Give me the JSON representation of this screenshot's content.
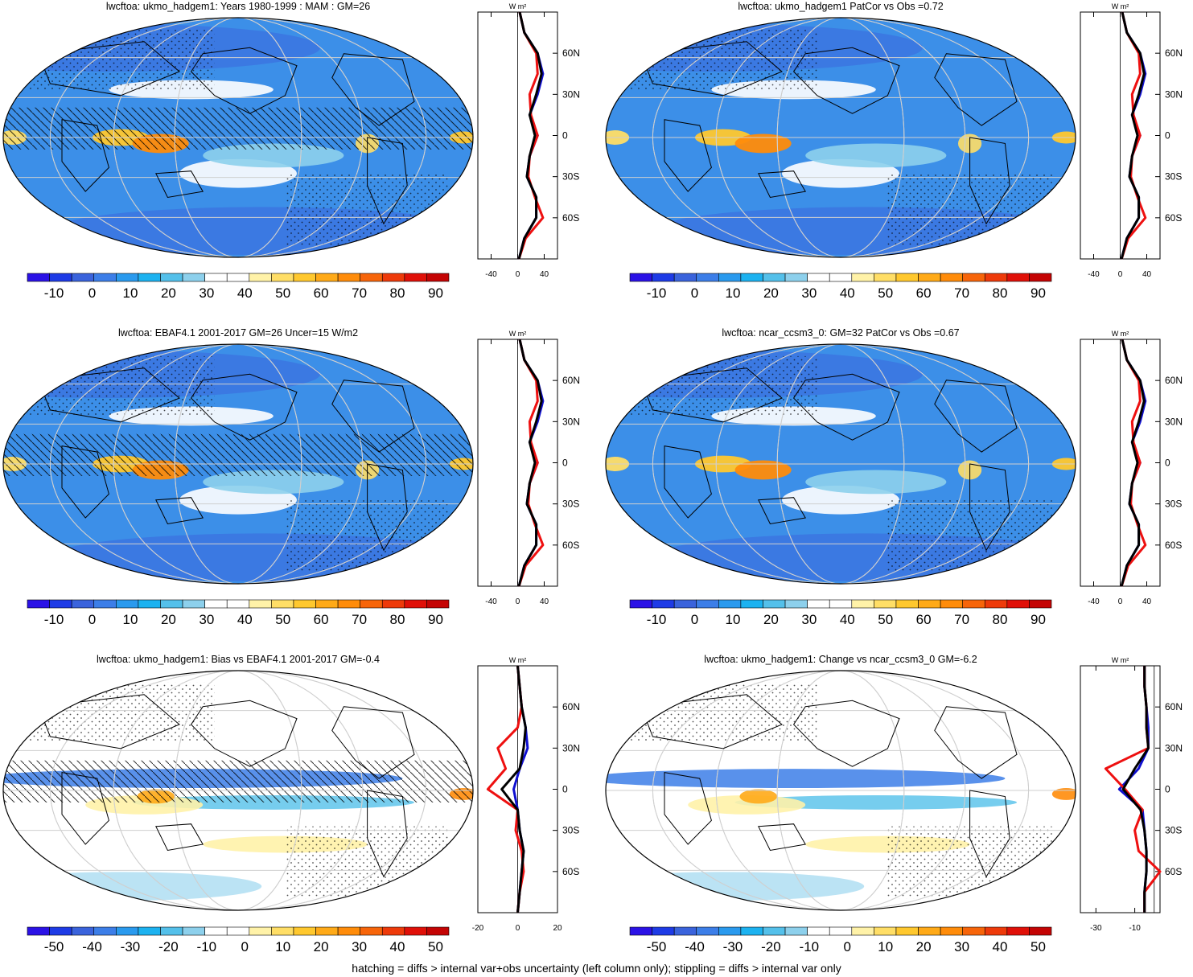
{
  "footnote": "hatching = diffs > internal var+obs uncertainty (left column only); stippling = diffs > internal var only",
  "colorbar_full": {
    "colors": [
      "#2b12e6",
      "#1e3be6",
      "#3a63dc",
      "#3c7ee8",
      "#2a9aee",
      "#1cb2f0",
      "#54c0ea",
      "#8dd0ec",
      "#ffffff",
      "#ffffff",
      "#fff2a8",
      "#ffde66",
      "#ffc82e",
      "#ffaa18",
      "#ff8c0a",
      "#f7650a",
      "#ee3a0a",
      "#e01008",
      "#c40404"
    ],
    "labels": [
      "-10",
      "0",
      "10",
      "20",
      "30",
      "40",
      "50",
      "60",
      "70",
      "80",
      "90"
    ]
  },
  "colorbar_diff": {
    "colors": [
      "#2b12e6",
      "#1e3be6",
      "#3a63dc",
      "#3c7ee8",
      "#2a9aee",
      "#1cb2f0",
      "#54c0ea",
      "#8dd0ec",
      "#ffffff",
      "#ffffff",
      "#fff2a8",
      "#ffde66",
      "#ffc82e",
      "#ffaa18",
      "#ff8c0a",
      "#f7650a",
      "#ee3a0a",
      "#e01008",
      "#c40404"
    ],
    "labels": [
      "-50",
      "-40",
      "-30",
      "-20",
      "-10",
      "0",
      "10",
      "20",
      "30",
      "40",
      "50"
    ]
  },
  "profile_unit": "W m²",
  "lat_labels": [
    "60N",
    "30N",
    "0",
    "30S",
    "60S"
  ],
  "line_colors": {
    "blue": "#1010d0",
    "red": "#ee1010",
    "black": "#000000"
  },
  "chart_data": [
    {
      "type": "heatmap",
      "title": "lwcftoa: ukmo_hadgem1: Years 1980-1999 : MAM : GM=26",
      "panel": "top-left",
      "colorbar": "full"
    },
    {
      "type": "heatmap",
      "title": "lwcftoa: ukmo_hadgem1 PatCor vs Obs =0.72",
      "panel": "top-right",
      "colorbar": "full"
    },
    {
      "type": "heatmap",
      "title": "lwcftoa: EBAF4.1 2001-2017 GM=26 Uncer=15 W/m2",
      "panel": "middle-left",
      "colorbar": "full"
    },
    {
      "type": "heatmap",
      "title": "lwcftoa: ncar_ccsm3_0: GM=32 PatCor vs Obs =0.67",
      "panel": "middle-right",
      "colorbar": "full"
    },
    {
      "type": "heatmap",
      "title": "lwcftoa: ukmo_hadgem1: Bias vs EBAF4.1 2001-2017 GM=-0.4",
      "panel": "bottom-left",
      "colorbar": "diff"
    },
    {
      "type": "heatmap",
      "title": "lwcftoa: ukmo_hadgem1: Change vs ncar_ccsm3_0 GM=-6.2",
      "panel": "bottom-right",
      "colorbar": "diff"
    },
    {
      "type": "line",
      "panel": "top-left-profile",
      "xlim": [
        -60,
        60
      ],
      "xticks": [
        "-40",
        "0",
        "40"
      ],
      "ylim": [
        -90,
        90
      ],
      "lat": [
        -90,
        -75,
        -60,
        -45,
        -30,
        -15,
        0,
        15,
        30,
        45,
        60,
        75,
        90
      ],
      "series": [
        {
          "color": "blue",
          "values": [
            2,
            10,
            28,
            28,
            14,
            18,
            30,
            18,
            30,
            38,
            30,
            10,
            3
          ]
        },
        {
          "color": "red",
          "values": [
            2,
            12,
            38,
            26,
            16,
            18,
            30,
            20,
            18,
            30,
            28,
            10,
            3
          ]
        },
        {
          "color": "black",
          "values": [
            2,
            10,
            28,
            28,
            14,
            18,
            26,
            18,
            28,
            36,
            30,
            10,
            3
          ]
        }
      ]
    },
    {
      "type": "line",
      "panel": "top-right-profile",
      "xlim": [
        -60,
        60
      ],
      "xticks": [
        "-40",
        "0",
        "40"
      ],
      "ylim": [
        -90,
        90
      ],
      "lat": [
        -90,
        -75,
        -60,
        -45,
        -30,
        -15,
        0,
        15,
        30,
        45,
        60,
        75,
        90
      ],
      "series": [
        {
          "color": "blue",
          "values": [
            2,
            10,
            28,
            28,
            14,
            18,
            30,
            18,
            30,
            38,
            30,
            10,
            3
          ]
        },
        {
          "color": "red",
          "values": [
            2,
            12,
            38,
            26,
            16,
            18,
            30,
            20,
            18,
            30,
            28,
            10,
            3
          ]
        },
        {
          "color": "black",
          "values": [
            2,
            10,
            28,
            28,
            14,
            18,
            26,
            18,
            28,
            36,
            30,
            10,
            3
          ]
        }
      ]
    },
    {
      "type": "line",
      "panel": "middle-left-profile",
      "xlim": [
        -60,
        60
      ],
      "xticks": [
        "-40",
        "0",
        "40"
      ],
      "ylim": [
        -90,
        90
      ],
      "lat": [
        -90,
        -75,
        -60,
        -45,
        -30,
        -15,
        0,
        15,
        30,
        45,
        60,
        75,
        90
      ],
      "series": [
        {
          "color": "blue",
          "values": [
            2,
            10,
            28,
            28,
            14,
            18,
            30,
            18,
            30,
            38,
            30,
            10,
            3
          ]
        },
        {
          "color": "red",
          "values": [
            2,
            12,
            38,
            26,
            16,
            18,
            30,
            20,
            18,
            30,
            28,
            10,
            3
          ]
        },
        {
          "color": "black",
          "values": [
            2,
            10,
            28,
            28,
            14,
            18,
            26,
            18,
            28,
            36,
            30,
            10,
            3
          ]
        }
      ]
    },
    {
      "type": "line",
      "panel": "middle-right-profile",
      "xlim": [
        -60,
        60
      ],
      "xticks": [
        "-40",
        "0",
        "40"
      ],
      "ylim": [
        -90,
        90
      ],
      "lat": [
        -90,
        -75,
        -60,
        -45,
        -30,
        -15,
        0,
        15,
        30,
        45,
        60,
        75,
        90
      ],
      "series": [
        {
          "color": "blue",
          "values": [
            2,
            10,
            28,
            28,
            14,
            18,
            30,
            18,
            30,
            38,
            30,
            10,
            3
          ]
        },
        {
          "color": "red",
          "values": [
            2,
            12,
            38,
            26,
            16,
            18,
            30,
            20,
            18,
            30,
            28,
            10,
            3
          ]
        },
        {
          "color": "black",
          "values": [
            2,
            10,
            28,
            28,
            14,
            18,
            26,
            18,
            28,
            36,
            30,
            10,
            3
          ]
        }
      ]
    },
    {
      "type": "line",
      "panel": "bottom-left-profile",
      "xlim": [
        -20,
        20
      ],
      "xticks": [
        "-20",
        "0",
        "20"
      ],
      "ylim": [
        -90,
        90
      ],
      "lat": [
        -90,
        -75,
        -60,
        -45,
        -30,
        -15,
        0,
        15,
        30,
        45,
        60,
        75,
        90
      ],
      "series": [
        {
          "color": "blue",
          "values": [
            0,
            1,
            2,
            3,
            1,
            0,
            -2,
            1,
            5,
            4,
            2,
            1,
            0
          ]
        },
        {
          "color": "red",
          "values": [
            0,
            1,
            3,
            2,
            -1,
            0,
            -15,
            -6,
            -10,
            0,
            2,
            1,
            0
          ]
        },
        {
          "color": "black",
          "values": [
            0,
            1,
            2,
            3,
            1,
            0,
            -8,
            1,
            3,
            4,
            2,
            1,
            0
          ]
        }
      ]
    },
    {
      "type": "line",
      "panel": "bottom-right-profile",
      "xlim": [
        -38,
        3
      ],
      "xticks": [
        "-30",
        "-10"
      ],
      "ylim": [
        -90,
        90
      ],
      "lat": [
        -90,
        -75,
        -60,
        -45,
        -30,
        -15,
        0,
        15,
        30,
        45,
        60,
        75,
        90
      ],
      "series": [
        {
          "color": "blue",
          "values": [
            -5,
            -5,
            -4,
            -4,
            -5,
            -6,
            -18,
            -8,
            -3,
            -3,
            -4,
            -5,
            -5
          ]
        },
        {
          "color": "red",
          "values": [
            -5,
            -5,
            3,
            -8,
            -10,
            -6,
            -15,
            -25,
            -3,
            -4,
            -4,
            -5,
            -5
          ]
        },
        {
          "color": "black",
          "values": [
            -5,
            -5,
            -4,
            -4,
            -5,
            -7,
            -16,
            -10,
            -3,
            -4,
            -4,
            -5,
            -5
          ]
        }
      ]
    }
  ]
}
